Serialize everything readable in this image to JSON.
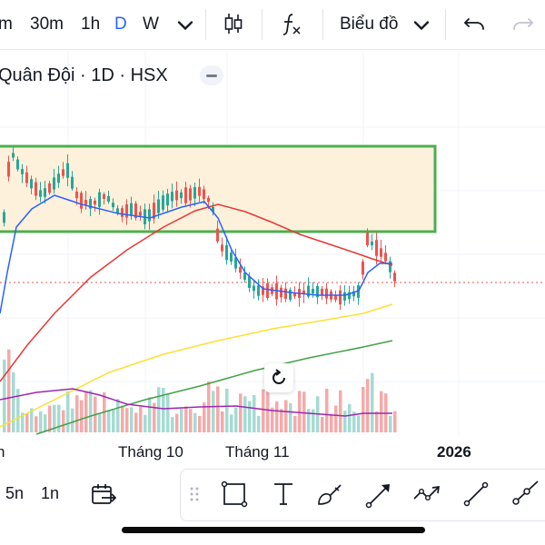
{
  "toolbar": {
    "intervals": [
      "m",
      "30m",
      "1h",
      "D",
      "W"
    ],
    "active_interval": "D",
    "interval_dropdown_icon": "chevron-down-icon",
    "candles_icon": "candlestick-icon",
    "indicators_icon": "fx-icon",
    "chart_type_label": "Biểu đồ",
    "chart_type_icon": "chevron-down-icon",
    "undo_icon": "undo-icon",
    "redo_icon": "redo-icon"
  },
  "legend": {
    "title": "Quân Đội · 1D · HSX",
    "collapse_icon": "minus-icon"
  },
  "x_axis": {
    "labels": [
      "n",
      "Tháng 10",
      "Tháng 11",
      "2026"
    ]
  },
  "reset_icon": "reset-icon",
  "bottom": {
    "ranges": [
      "5n",
      "1n"
    ],
    "goto_icon": "calendar-goto-icon",
    "drawing_tools": [
      "drag-handle-icon",
      "rectangle-icon",
      "text-tool-icon",
      "brush-icon",
      "arrow-icon",
      "path-icon",
      "trend-line-icon",
      "ray-icon"
    ]
  },
  "colors": {
    "up": "#26a69a",
    "down": "#ef5350",
    "zone_fill": "#fdf1dc",
    "zone_border": "#4caf50",
    "ma_fast": "#2962ff",
    "ma_mid": "#e53935",
    "ma_slow": "#fbe035",
    "ma_long": "#43a047",
    "vol_ma": "#9c27b0",
    "active": "#2962ff"
  },
  "chart_data": {
    "type": "candlestick",
    "title": "Quân Đội · 1D · HSX",
    "x_labels": [
      "Tháng 10",
      "Tháng 11",
      "2026"
    ],
    "price_zone": {
      "label": "",
      "note": "highlighted rectangle"
    },
    "candles_close_trend": [
      31,
      33,
      32,
      30,
      31,
      29,
      30,
      29.5,
      30,
      31,
      30,
      29,
      25,
      23,
      22,
      21.5,
      22,
      22.5,
      22,
      21.5,
      22,
      27,
      26,
      24
    ],
    "grid": true
  }
}
